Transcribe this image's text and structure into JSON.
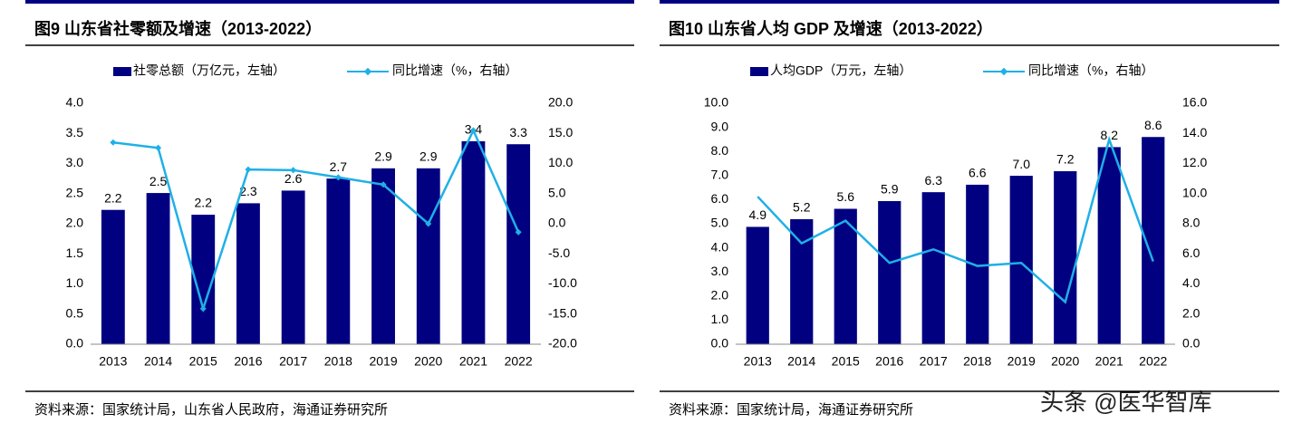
{
  "chart_data": [
    {
      "type": "bar-line",
      "title": "图9  山东省社零额及增速（2013-2022）",
      "categories": [
        "2013",
        "2014",
        "2015",
        "2016",
        "2017",
        "2018",
        "2019",
        "2020",
        "2021",
        "2022"
      ],
      "series": [
        {
          "name": "社零总额（万亿元，左轴）",
          "color": "#000080",
          "type": "bar",
          "axis": "y",
          "values": [
            2.23,
            2.51,
            2.15,
            2.34,
            2.55,
            2.75,
            2.92,
            2.92,
            3.37,
            3.32
          ],
          "value_labels": [
            "2.2",
            "2.5",
            "2.2",
            "2.3",
            "2.6",
            "2.7",
            "2.9",
            "2.9",
            "3.4",
            "3.3"
          ]
        },
        {
          "name": "同比增速（%，右轴）",
          "color": "#1fb0e6",
          "type": "line",
          "axis": "y2",
          "markers": true,
          "values": [
            13.5,
            12.6,
            -14.1,
            9.0,
            8.9,
            7.7,
            6.5,
            0.0,
            15.5,
            -1.4
          ]
        }
      ],
      "ylim": [
        0,
        4
      ],
      "yticks": [
        {
          "value": 0,
          "label": "0.0"
        },
        0.5,
        {
          "value": 1,
          "label": "1.0"
        },
        1.5,
        {
          "value": 2,
          "label": "2.0"
        },
        2.5,
        {
          "value": 3,
          "label": "3.0"
        },
        3.5,
        {
          "value": 4,
          "label": "4.0"
        }
      ],
      "y2lim": [
        -20,
        20
      ],
      "y2ticks": [
        {
          "value": -20,
          "label": "-20.0"
        },
        {
          "value": -15,
          "label": "-15.0"
        },
        {
          "value": -10,
          "label": "-10.0"
        },
        {
          "value": -5,
          "label": "-5.0"
        },
        {
          "value": 0,
          "label": "0.0"
        },
        {
          "value": 5,
          "label": "5.0"
        },
        {
          "value": 10,
          "label": "10.0"
        },
        {
          "value": 15,
          "label": "15.0"
        },
        {
          "value": 20,
          "label": "20.0"
        }
      ],
      "legend": "top",
      "source": "资料来源：国家统计局，山东省人民政府，海通证券研究所"
    },
    {
      "type": "bar-line",
      "title": "图10 山东省人均 GDP 及增速（2013-2022）",
      "categories": [
        "2013",
        "2014",
        "2015",
        "2016",
        "2017",
        "2018",
        "2019",
        "2020",
        "2021",
        "2022"
      ],
      "series": [
        {
          "name": "人均GDP（万元，左轴）",
          "color": "#000080",
          "type": "bar",
          "axis": "y",
          "values": [
            4.87,
            5.19,
            5.62,
            5.94,
            6.31,
            6.62,
            6.99,
            7.18,
            8.18,
            8.6
          ],
          "value_labels": [
            "4.9",
            "5.2",
            "5.6",
            "5.9",
            "6.3",
            "6.6",
            "7.0",
            "7.2",
            "8.2",
            "8.6"
          ]
        },
        {
          "name": "同比增速（%，右轴）",
          "color": "#1fb0e6",
          "type": "line",
          "axis": "y2",
          "markers": false,
          "values": [
            9.8,
            6.7,
            8.2,
            5.4,
            6.3,
            5.2,
            5.4,
            2.8,
            13.6,
            5.5
          ]
        }
      ],
      "ylim": [
        0,
        10
      ],
      "yticks": [
        {
          "value": 0,
          "label": "0.0"
        },
        {
          "value": 1,
          "label": "1.0"
        },
        {
          "value": 2,
          "label": "2.0"
        },
        {
          "value": 3,
          "label": "3.0"
        },
        {
          "value": 4,
          "label": "4.0"
        },
        {
          "value": 5,
          "label": "5.0"
        },
        {
          "value": 6,
          "label": "6.0"
        },
        {
          "value": 7,
          "label": "7.0"
        },
        {
          "value": 8,
          "label": "8.0"
        },
        {
          "value": 9,
          "label": "9.0"
        },
        {
          "value": 10,
          "label": "10.0"
        }
      ],
      "y2lim": [
        0,
        16
      ],
      "y2ticks": [
        {
          "value": 0,
          "label": "0.0"
        },
        {
          "value": 2,
          "label": "2.0"
        },
        {
          "value": 4,
          "label": "4.0"
        },
        {
          "value": 6,
          "label": "6.0"
        },
        {
          "value": 8,
          "label": "8.0"
        },
        {
          "value": 10,
          "label": "10.0"
        },
        {
          "value": 12,
          "label": "12.0"
        },
        {
          "value": 14,
          "label": "14.0"
        },
        {
          "value": 16,
          "label": "16.0"
        }
      ],
      "legend": "top",
      "source": "资料来源：国家统计局，海通证券研究所"
    }
  ],
  "watermark": "头条 @医华智库"
}
